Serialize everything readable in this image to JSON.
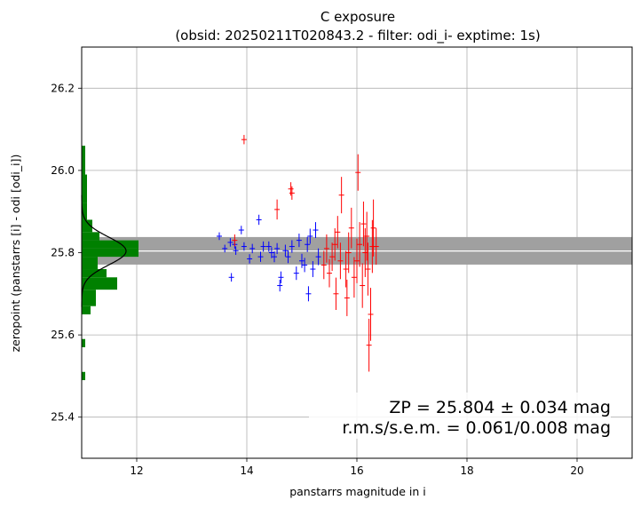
{
  "chart_data": {
    "type": "scatter",
    "title": "C exposure",
    "subtitle": "(obsid: 20250211T020843.2 - filter: odi_i- exptime: 1s)",
    "xlabel": "panstarrs magnitude in i",
    "ylabel": "zeropoint (panstarrs [i] - odi [odi_i])",
    "xlim": [
      11.0,
      21.0
    ],
    "ylim": [
      25.3,
      26.3
    ],
    "xticks": [
      "12",
      "14",
      "16",
      "18",
      "20"
    ],
    "yticks": [
      "25.4",
      "25.6",
      "25.8",
      "26.0",
      "26.2"
    ],
    "grid": true,
    "zp_band": {
      "center": 25.804,
      "low": 25.771,
      "high": 25.838
    },
    "annotation_line1": "ZP = 25.804 ± 0.034 mag",
    "annotation_line2": "r.m.s/s.e.m. = 0.061/0.008 mag",
    "colors": {
      "used": "#0000ff",
      "rejected": "#ff0000",
      "hist": "#008000",
      "band": "#a0a0a0"
    },
    "series": [
      {
        "points": [
          {
            "x": 13.5,
            "y": 25.84,
            "e": 0.005
          },
          {
            "x": 13.6,
            "y": 25.81,
            "e": 0.005
          },
          {
            "x": 13.72,
            "y": 25.74,
            "e": 0.006
          },
          {
            "x": 13.7,
            "y": 25.825,
            "e": 0.006
          },
          {
            "x": 13.78,
            "y": 25.82,
            "e": 0.006
          },
          {
            "x": 13.8,
            "y": 25.805,
            "e": 0.006
          },
          {
            "x": 13.9,
            "y": 25.855,
            "e": 0.006
          },
          {
            "x": 13.95,
            "y": 25.815,
            "e": 0.006
          },
          {
            "x": 14.05,
            "y": 25.785,
            "e": 0.007
          },
          {
            "x": 14.1,
            "y": 25.81,
            "e": 0.007
          },
          {
            "x": 14.22,
            "y": 25.88,
            "e": 0.008
          },
          {
            "x": 14.25,
            "y": 25.79,
            "e": 0.008
          },
          {
            "x": 14.3,
            "y": 25.815,
            "e": 0.008
          },
          {
            "x": 14.4,
            "y": 25.815,
            "e": 0.008
          },
          {
            "x": 14.45,
            "y": 25.8,
            "e": 0.009
          },
          {
            "x": 14.5,
            "y": 25.79,
            "e": 0.009
          },
          {
            "x": 14.55,
            "y": 25.81,
            "e": 0.009
          },
          {
            "x": 14.6,
            "y": 25.72,
            "e": 0.01
          },
          {
            "x": 14.62,
            "y": 25.74,
            "e": 0.01
          },
          {
            "x": 14.7,
            "y": 25.805,
            "e": 0.01
          },
          {
            "x": 14.75,
            "y": 25.79,
            "e": 0.011
          },
          {
            "x": 14.82,
            "y": 25.815,
            "e": 0.011
          },
          {
            "x": 14.9,
            "y": 25.75,
            "e": 0.012
          },
          {
            "x": 14.95,
            "y": 25.83,
            "e": 0.012
          },
          {
            "x": 15.0,
            "y": 25.78,
            "e": 0.013
          },
          {
            "x": 15.05,
            "y": 25.77,
            "e": 0.013
          },
          {
            "x": 15.1,
            "y": 25.82,
            "e": 0.014
          },
          {
            "x": 15.15,
            "y": 25.84,
            "e": 0.014
          },
          {
            "x": 15.2,
            "y": 25.76,
            "e": 0.015
          },
          {
            "x": 15.25,
            "y": 25.855,
            "e": 0.015
          },
          {
            "x": 15.3,
            "y": 25.79,
            "e": 0.016
          },
          {
            "x": 15.12,
            "y": 25.7,
            "e": 0.014
          }
        ]
      },
      {
        "points": [
          {
            "x": 13.95,
            "y": 26.075,
            "e": 0.007
          },
          {
            "x": 14.55,
            "y": 25.905,
            "e": 0.02
          },
          {
            "x": 14.8,
            "y": 25.955,
            "e": 0.012
          },
          {
            "x": 14.82,
            "y": 25.945,
            "e": 0.012
          },
          {
            "x": 13.78,
            "y": 25.83,
            "e": 0.01
          },
          {
            "x": 15.4,
            "y": 25.77,
            "e": 0.03
          },
          {
            "x": 15.45,
            "y": 25.81,
            "e": 0.03
          },
          {
            "x": 15.5,
            "y": 25.75,
            "e": 0.03
          },
          {
            "x": 15.55,
            "y": 25.79,
            "e": 0.03
          },
          {
            "x": 15.6,
            "y": 25.82,
            "e": 0.035
          },
          {
            "x": 15.62,
            "y": 25.7,
            "e": 0.035
          },
          {
            "x": 15.7,
            "y": 25.78,
            "e": 0.04
          },
          {
            "x": 15.72,
            "y": 25.94,
            "e": 0.04
          },
          {
            "x": 15.8,
            "y": 25.76,
            "e": 0.04
          },
          {
            "x": 15.82,
            "y": 25.69,
            "e": 0.04
          },
          {
            "x": 15.85,
            "y": 25.8,
            "e": 0.045
          },
          {
            "x": 15.9,
            "y": 25.86,
            "e": 0.045
          },
          {
            "x": 15.95,
            "y": 25.74,
            "e": 0.045
          },
          {
            "x": 16.0,
            "y": 25.78,
            "e": 0.05
          },
          {
            "x": 16.02,
            "y": 25.995,
            "e": 0.04
          },
          {
            "x": 16.05,
            "y": 25.82,
            "e": 0.05
          },
          {
            "x": 16.1,
            "y": 25.72,
            "e": 0.05
          },
          {
            "x": 16.12,
            "y": 25.87,
            "e": 0.05
          },
          {
            "x": 16.15,
            "y": 25.8,
            "e": 0.055
          },
          {
            "x": 16.18,
            "y": 25.84,
            "e": 0.055
          },
          {
            "x": 16.2,
            "y": 25.76,
            "e": 0.06
          },
          {
            "x": 16.22,
            "y": 25.575,
            "e": 0.06
          },
          {
            "x": 16.25,
            "y": 25.65,
            "e": 0.06
          },
          {
            "x": 16.28,
            "y": 25.815,
            "e": 0.06
          },
          {
            "x": 16.3,
            "y": 25.86,
            "e": 0.065
          },
          {
            "x": 16.35,
            "y": 25.815,
            "e": 0.04
          },
          {
            "x": 15.65,
            "y": 25.85,
            "e": 0.035
          }
        ]
      }
    ],
    "histogram": {
      "bins": [
        {
          "y0": 25.49,
          "y1": 25.51,
          "count": 0.2
        },
        {
          "y0": 25.57,
          "y1": 25.59,
          "count": 0.2
        },
        {
          "y0": 25.65,
          "y1": 25.67,
          "count": 0.5
        },
        {
          "y0": 25.67,
          "y1": 25.71,
          "count": 0.8
        },
        {
          "y0": 25.71,
          "y1": 25.74,
          "count": 2.0
        },
        {
          "y0": 25.74,
          "y1": 25.76,
          "count": 1.4
        },
        {
          "y0": 25.76,
          "y1": 25.79,
          "count": 0.9
        },
        {
          "y0": 25.79,
          "y1": 25.81,
          "count": 3.2
        },
        {
          "y0": 25.81,
          "y1": 25.83,
          "count": 3.2
        },
        {
          "y0": 25.83,
          "y1": 25.85,
          "count": 1.0
        },
        {
          "y0": 25.85,
          "y1": 25.88,
          "count": 0.6
        },
        {
          "y0": 25.88,
          "y1": 25.92,
          "count": 0.3
        },
        {
          "y0": 25.92,
          "y1": 25.99,
          "count": 0.3
        },
        {
          "y0": 25.99,
          "y1": 26.03,
          "count": 0.2
        },
        {
          "y0": 26.03,
          "y1": 26.06,
          "count": 0.2
        }
      ],
      "gauss_center": 25.804,
      "gauss_sigma": 0.034,
      "gauss_peak": 2.5
    }
  }
}
